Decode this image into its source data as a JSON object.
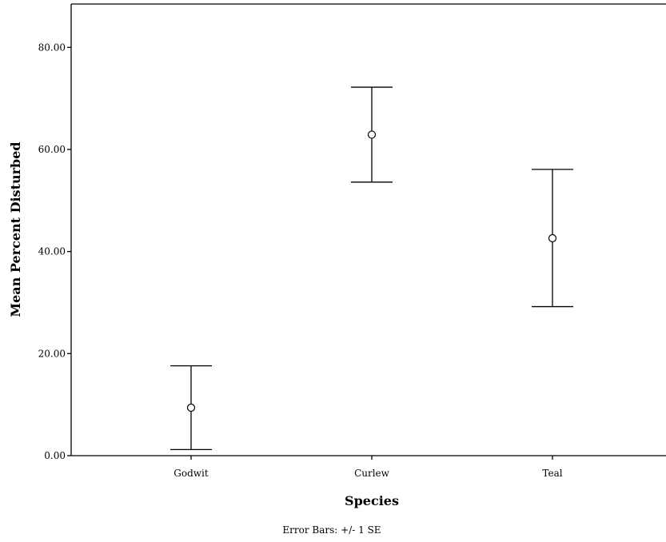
{
  "chart_data": {
    "type": "scatter",
    "xlabel": "Species",
    "ylabel": "Mean Percent Disturbed",
    "footnote": "Error Bars: +/- 1 SE",
    "categories": [
      "Godwit",
      "Curlew",
      "Teal"
    ],
    "means": [
      9.4,
      62.9,
      42.6
    ],
    "lower": [
      1.2,
      53.6,
      29.2
    ],
    "upper": [
      17.6,
      72.2,
      56.1
    ],
    "yticks": [
      0,
      20,
      40,
      60,
      80
    ],
    "ytick_labels": [
      "0.00",
      "20.00",
      "40.00",
      "60.00",
      "80.00"
    ],
    "ylim": [
      0,
      88.5
    ],
    "grid": false,
    "marker": "open-circle"
  }
}
